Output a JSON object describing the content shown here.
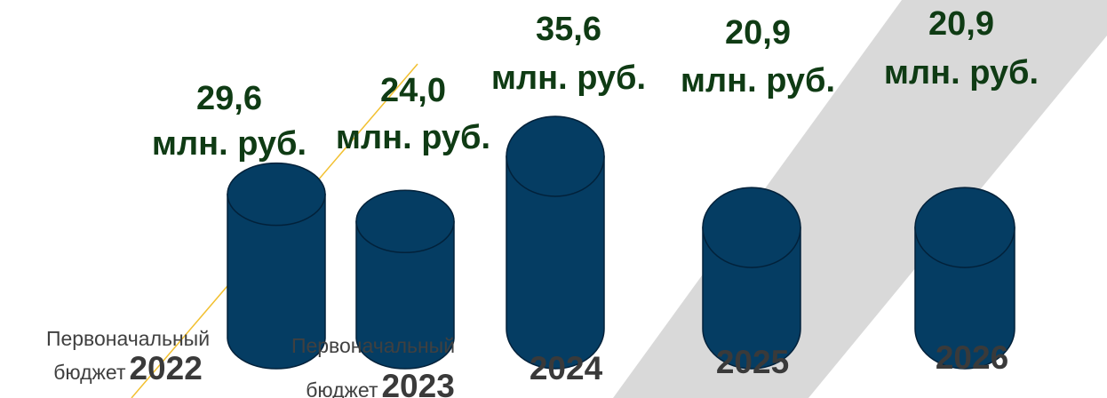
{
  "chart_data": {
    "type": "bar",
    "bar_shape": "cylinder",
    "unit": "млн. руб.",
    "bars": [
      {
        "year": "2022",
        "prefix_line1": "Первоначальный",
        "prefix_line2": "бюджет",
        "value": 29.6,
        "value_text": "29,6",
        "unit_text": "млн. руб."
      },
      {
        "year": "2023",
        "prefix_line1": "Первоначальный",
        "prefix_line2": "бюджет",
        "value": 24.0,
        "value_text": "24,0",
        "unit_text": "млн. руб."
      },
      {
        "year": "2024",
        "prefix_line1": "",
        "prefix_line2": "",
        "value": 35.6,
        "value_text": "35,6",
        "unit_text": "млн. руб."
      },
      {
        "year": "2025",
        "prefix_line1": "",
        "prefix_line2": "",
        "value": 20.9,
        "value_text": "20,9",
        "unit_text": "млн. руб."
      },
      {
        "year": "2026",
        "prefix_line1": "",
        "prefix_line2": "",
        "value": 20.9,
        "value_text": "20,9",
        "unit_text": "млн. руб."
      }
    ],
    "colors": {
      "bar_fill": "#053d63",
      "bar_stroke": "#02213a",
      "value_label": "#0f3b14",
      "category_label": "#3a3a3a",
      "background_band": "#d9d9d9",
      "accent_line": "#f2c030"
    },
    "grid": false,
    "legend": "none"
  }
}
